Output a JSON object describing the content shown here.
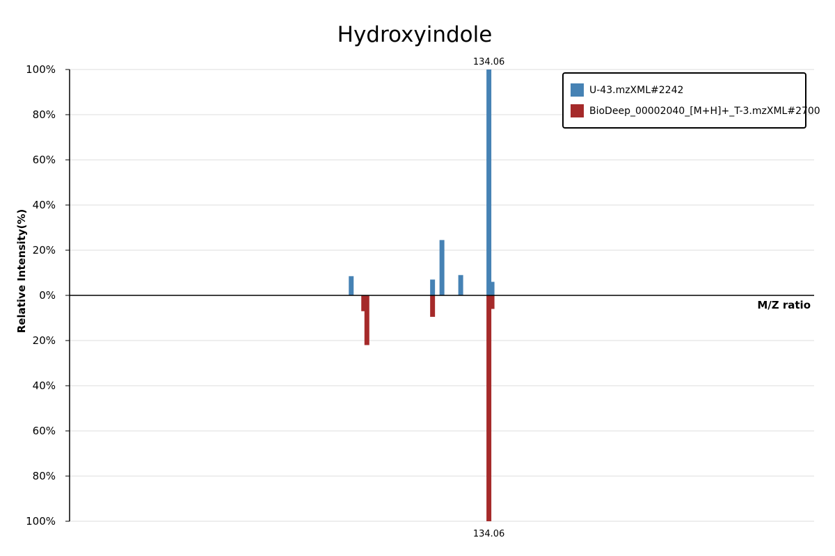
{
  "chart_data": {
    "type": "bar",
    "title": "Hydroxyindole",
    "xlabel": "M/Z ratio",
    "ylabel": "Relative Intensity(%)",
    "ylim": [
      -100,
      100
    ],
    "yticks": [
      {
        "value": 100,
        "label": "100%"
      },
      {
        "value": 80,
        "label": "80%"
      },
      {
        "value": 60,
        "label": "60%"
      },
      {
        "value": 40,
        "label": "40%"
      },
      {
        "value": 20,
        "label": "20%"
      },
      {
        "value": 0,
        "label": "0%"
      },
      {
        "value": -20,
        "label": "20%"
      },
      {
        "value": -40,
        "label": "40%"
      },
      {
        "value": -60,
        "label": "60%"
      },
      {
        "value": -80,
        "label": "80%"
      },
      {
        "value": -100,
        "label": "100%"
      }
    ],
    "xlim": [
      0,
      238.04
    ],
    "grid": true,
    "legend_position": "top-right",
    "series": [
      {
        "name": "U-43.mzXML#2242",
        "color": "#4682b4",
        "direction": "up",
        "peaks": [
          {
            "mz": 90.04,
            "intensity": 8.5
          },
          {
            "mz": 116.05,
            "intensity": 7.0
          },
          {
            "mz": 119.05,
            "intensity": 24.5
          },
          {
            "mz": 125.05,
            "intensity": 9.0
          },
          {
            "mz": 134.06,
            "intensity": 100,
            "label": "134.06"
          },
          {
            "mz": 135.06,
            "intensity": 6.0
          }
        ]
      },
      {
        "name": "BioDeep_00002040_[M+H]+_T-3.mzXML#2700",
        "color": "#a52a2a",
        "direction": "down",
        "peaks": [
          {
            "mz": 94.04,
            "intensity": 7.0
          },
          {
            "mz": 95.05,
            "intensity": 22.0
          },
          {
            "mz": 116.05,
            "intensity": 9.5
          },
          {
            "mz": 134.06,
            "intensity": 100,
            "label": "134.06"
          },
          {
            "mz": 135.06,
            "intensity": 6.0
          }
        ]
      }
    ]
  }
}
